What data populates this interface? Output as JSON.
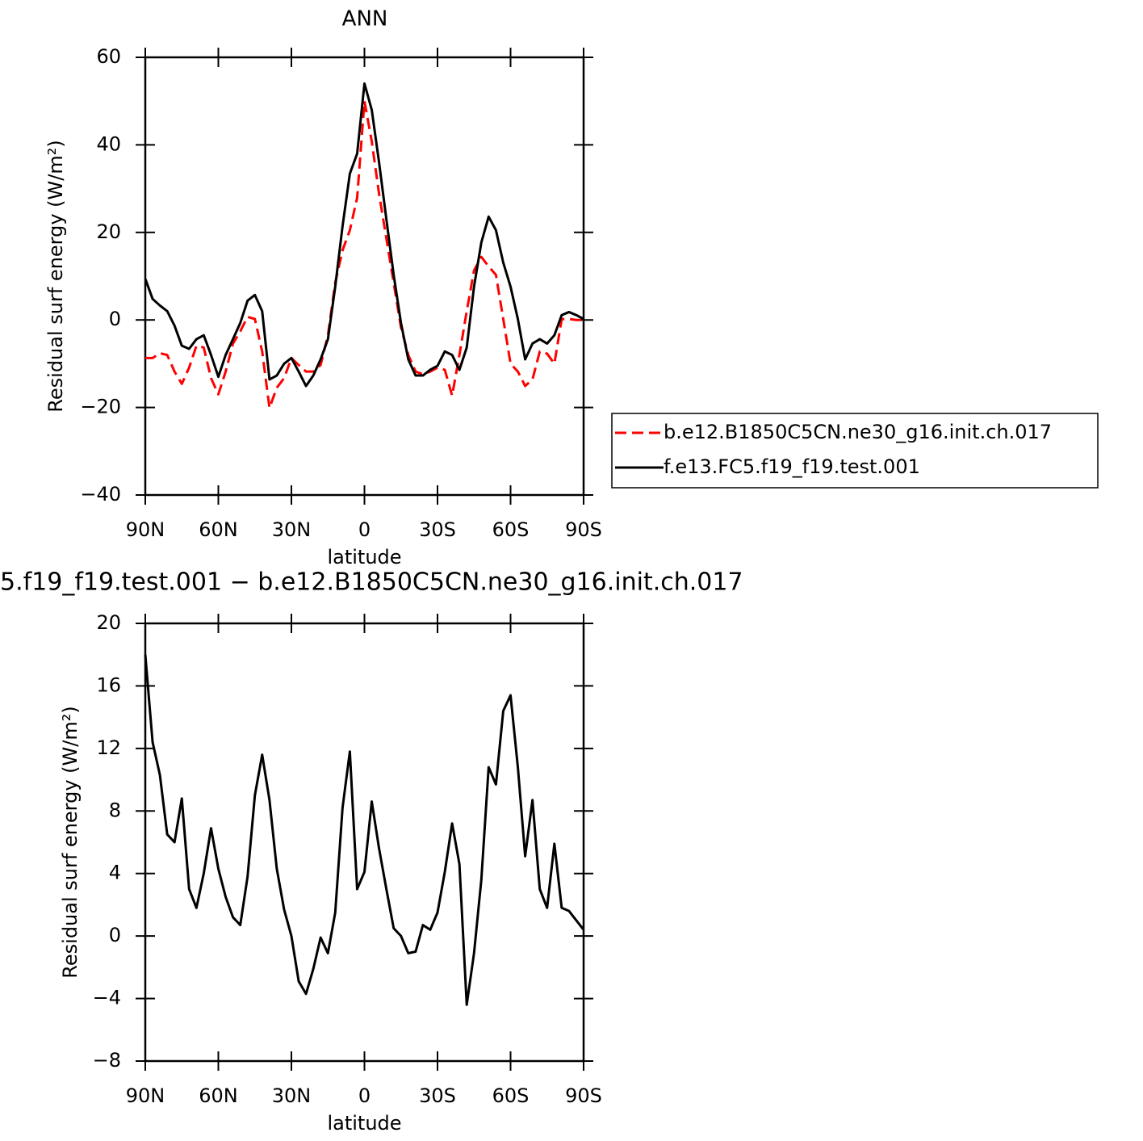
{
  "chart_data": [
    {
      "type": "line",
      "title": "ANN",
      "x_label": "latitude",
      "y_label": "Residual surf energy (W/m²)",
      "x": [
        90,
        87,
        84,
        81,
        78,
        75,
        72,
        69,
        66,
        63,
        60,
        57,
        54,
        51,
        48,
        45,
        42,
        39,
        36,
        33,
        30,
        27,
        24,
        21,
        18,
        15,
        12,
        9,
        6,
        3,
        0,
        -3,
        -6,
        -9,
        -12,
        -15,
        -18,
        -21,
        -24,
        -27,
        -30,
        -33,
        -36,
        -39,
        -42,
        -45,
        -48,
        -51,
        -54,
        -57,
        -60,
        -63,
        -66,
        -69,
        -72,
        -75,
        -78,
        -81,
        -84,
        -87,
        -90
      ],
      "series": [
        {
          "name": "b.e12.B1850C5CN.ne30_g16.init.ch.017",
          "color": "#ff0000",
          "style": "dashed",
          "values": [
            -8.7,
            -8.7,
            -7.6,
            -8,
            -11.8,
            -14.6,
            -10.9,
            -5.9,
            -6.3,
            -13.3,
            -17,
            -11.8,
            -5.4,
            -2.6,
            0.7,
            0.2,
            -7.2,
            -20.1,
            -15.5,
            -13.3,
            -8.7,
            -10.3,
            -11.8,
            -11.8,
            -10.3,
            -3.5,
            8.5,
            15.9,
            20.5,
            27.9,
            50,
            40.8,
            28.8,
            18.6,
            8.5,
            -1.7,
            -8,
            -11.8,
            -12.4,
            -11.8,
            -10.9,
            -11.4,
            -17.3,
            -8,
            2,
            11.3,
            14.4,
            12.2,
            10.3,
            0.2,
            -10,
            -11.8,
            -15.1,
            -13.6,
            -7.2,
            -7.7,
            -10,
            0.2,
            0.2,
            0,
            0
          ]
        },
        {
          "name": "f.e13.FC5.f19_f19.test.001",
          "color": "#000000",
          "style": "solid",
          "values": [
            9.4,
            4.8,
            3.3,
            2,
            -1.3,
            -5.9,
            -6.6,
            -4.4,
            -3.5,
            -8,
            -13,
            -8,
            -4.4,
            -0.7,
            4.4,
            5.7,
            2,
            -13.6,
            -12.7,
            -10,
            -8.7,
            -11.8,
            -15.1,
            -12.7,
            -9,
            -4.4,
            7.6,
            21.4,
            33.4,
            38,
            54,
            48,
            36,
            23,
            10.3,
            -0.7,
            -9,
            -12.7,
            -12.7,
            -11.4,
            -10.5,
            -7.2,
            -8,
            -11.4,
            -6.3,
            7.6,
            17.7,
            23.6,
            20.5,
            13.1,
            7.6,
            0.2,
            -9,
            -5.4,
            -4.4,
            -5.4,
            -3.5,
            1.1,
            1.8,
            1.1,
            0.2
          ]
        }
      ],
      "xlim": [
        90,
        -90
      ],
      "xticks": [
        {
          "value": 90,
          "label": "90N"
        },
        {
          "value": 60,
          "label": "60N"
        },
        {
          "value": 30,
          "label": "30N"
        },
        0,
        {
          "value": -30,
          "label": "30S"
        },
        {
          "value": -60,
          "label": "60S"
        },
        {
          "value": -90,
          "label": "90S"
        }
      ],
      "ylim": [
        -40,
        60
      ],
      "yticks": [
        {
          "value": -40,
          "label": "−40"
        },
        {
          "value": -20,
          "label": "−20"
        },
        0,
        20,
        40,
        60
      ],
      "legend": true
    },
    {
      "type": "line",
      "title": "5.f19_f19.test.001 − b.e12.B1850C5CN.ne30_g16.init.ch.017",
      "x_label": "latitude",
      "y_label": "Residual surf energy (W/m²)",
      "x": [
        90,
        87,
        84,
        81,
        78,
        75,
        72,
        69,
        66,
        63,
        60,
        57,
        54,
        51,
        48,
        45,
        42,
        39,
        36,
        33,
        30,
        27,
        24,
        21,
        18,
        15,
        12,
        9,
        6,
        3,
        0,
        -3,
        -6,
        -9,
        -12,
        -15,
        -18,
        -21,
        -24,
        -27,
        -30,
        -33,
        -36,
        -39,
        -42,
        -45,
        -48,
        -51,
        -54,
        -57,
        -60,
        -63,
        -66,
        -69,
        -72,
        -75,
        -78,
        -81,
        -84,
        -87,
        -90
      ],
      "series": [
        {
          "color": "#000000",
          "style": "solid",
          "values": [
            18,
            12.4,
            10.3,
            6.5,
            6,
            8.8,
            3,
            1.8,
            4,
            6.9,
            4.3,
            2.5,
            1.2,
            0.7,
            3.8,
            9,
            11.6,
            8.7,
            4.3,
            1.7,
            0,
            -2.9,
            -3.7,
            -2.1,
            -0.1,
            -1.1,
            1.5,
            8.2,
            11.8,
            3,
            4.1,
            8.6,
            5.6,
            3,
            0.5,
            0,
            -1.1,
            -1,
            0.7,
            0.4,
            1.5,
            4.1,
            7.2,
            4.6,
            -4.4,
            -1.1,
            3.6,
            10.8,
            9.7,
            14.4,
            15.4,
            10.8,
            5.1,
            8.7,
            3,
            1.8,
            5.9,
            1.8,
            1.6,
            1,
            0.4
          ]
        }
      ],
      "xlim": [
        90,
        -90
      ],
      "xticks": [
        {
          "value": 90,
          "label": "90N"
        },
        {
          "value": 60,
          "label": "60N"
        },
        {
          "value": 30,
          "label": "30N"
        },
        0,
        {
          "value": -30,
          "label": "30S"
        },
        {
          "value": -60,
          "label": "60S"
        },
        {
          "value": -90,
          "label": "90S"
        }
      ],
      "ylim": [
        -8,
        20
      ],
      "yticks": [
        {
          "value": -8,
          "label": "−8"
        },
        {
          "value": -4,
          "label": "−4"
        },
        0,
        4,
        8,
        12,
        16,
        20
      ],
      "legend": false
    }
  ]
}
